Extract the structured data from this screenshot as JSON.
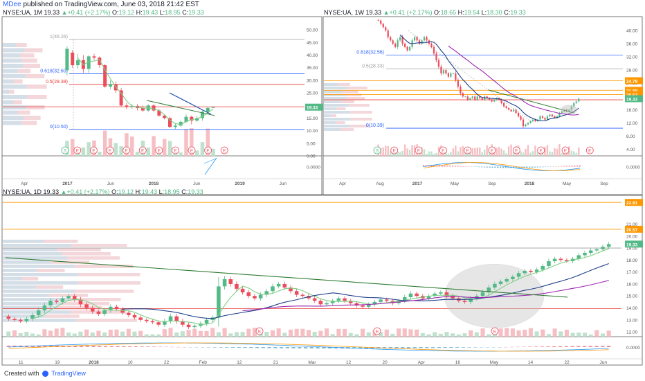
{
  "publish_line": {
    "author": "MDee",
    "rest": " published on TradingView.com, June 03, 2018 21:42 EST"
  },
  "footer": {
    "created_with": "Created with",
    "brand": "TradingView"
  },
  "colors": {
    "up": "#53b987",
    "down": "#eb4d5c",
    "sma_fast": "#1e3f8a",
    "sma_slow": "#9c27b0",
    "ema": "#7ccf82",
    "fib": "#2962ff",
    "level": "#e53935",
    "orange": "#ff9800",
    "trend": "#2e7d32",
    "blue_line": "#1f4fa6"
  },
  "chart_data": [
    {
      "type": "candlestick",
      "panel": "monthly",
      "header": {
        "symbol": "NYSE:UA, 1M",
        "price": "19.33",
        "change": "+0.41 (+2.17%)",
        "o": "19.12",
        "h": "19.43",
        "l": "18.95",
        "c": "19.33"
      },
      "ylim": [
        0,
        55
      ],
      "y_ticks": [
        "50.00",
        "45.00",
        "40.00",
        "35.00",
        "30.00",
        "25.00",
        "20.00",
        "15.00",
        "10.00",
        "5.00",
        "0.00"
      ],
      "indicator_tick": "0.0000",
      "x_ticks": [
        "Apr",
        "2017",
        "Jun",
        "2018",
        "Jun",
        "2019",
        "Jun"
      ],
      "last_price_label": "19.33",
      "fib_levels": [
        {
          "label": "1(46.26)",
          "value": 46.26
        },
        {
          "label": "0.618(32.60)",
          "value": 32.6
        },
        {
          "label": "0.5(28.38)",
          "value": 28.38
        },
        {
          "label": "0(10.50)",
          "value": 10.5
        }
      ],
      "candles": [
        {
          "t": "2016-03",
          "o": 34.0,
          "h": 43.5,
          "l": 32.0,
          "c": 42.5
        },
        {
          "t": "2016-04",
          "o": 41.0,
          "h": 42.0,
          "l": 35.0,
          "c": 36.0
        },
        {
          "t": "2016-05",
          "o": 36.0,
          "h": 40.5,
          "l": 34.5,
          "c": 38.0
        },
        {
          "t": "2016-06",
          "o": 38.0,
          "h": 40.0,
          "l": 33.0,
          "c": 34.5
        },
        {
          "t": "2016-07",
          "o": 34.5,
          "h": 40.0,
          "l": 33.0,
          "c": 39.5
        },
        {
          "t": "2016-08",
          "o": 39.5,
          "h": 40.5,
          "l": 38.0,
          "c": 39.0
        },
        {
          "t": "2016-09",
          "o": 39.0,
          "h": 39.5,
          "l": 35.0,
          "c": 36.0
        },
        {
          "t": "2016-10",
          "o": 36.0,
          "h": 36.5,
          "l": 27.0,
          "c": 27.5
        },
        {
          "t": "2016-11",
          "o": 27.5,
          "h": 30.0,
          "l": 26.5,
          "c": 28.5
        },
        {
          "t": "2016-12",
          "o": 28.5,
          "h": 29.5,
          "l": 25.0,
          "c": 26.0
        },
        {
          "t": "2017-01",
          "o": 26.0,
          "h": 27.0,
          "l": 19.5,
          "c": 20.0
        },
        {
          "t": "2017-02",
          "o": 20.0,
          "h": 21.0,
          "l": 18.5,
          "c": 19.5
        },
        {
          "t": "2017-03",
          "o": 19.5,
          "h": 20.5,
          "l": 18.5,
          "c": 19.8
        },
        {
          "t": "2017-04",
          "o": 19.8,
          "h": 20.5,
          "l": 18.0,
          "c": 19.0
        },
        {
          "t": "2017-05",
          "o": 19.0,
          "h": 20.0,
          "l": 17.5,
          "c": 18.0
        },
        {
          "t": "2017-06",
          "o": 18.0,
          "h": 20.5,
          "l": 17.5,
          "c": 20.0
        },
        {
          "t": "2017-07",
          "o": 20.0,
          "h": 20.5,
          "l": 17.5,
          "c": 18.0
        },
        {
          "t": "2017-08",
          "o": 18.0,
          "h": 18.5,
          "l": 15.5,
          "c": 16.0
        },
        {
          "t": "2017-09",
          "o": 16.0,
          "h": 16.5,
          "l": 14.5,
          "c": 15.0
        },
        {
          "t": "2017-10",
          "o": 15.0,
          "h": 15.5,
          "l": 11.0,
          "c": 11.5
        },
        {
          "t": "2017-11",
          "o": 11.5,
          "h": 13.0,
          "l": 10.5,
          "c": 12.0
        },
        {
          "t": "2017-12",
          "o": 12.0,
          "h": 14.0,
          "l": 11.5,
          "c": 13.5
        },
        {
          "t": "2018-01",
          "o": 13.5,
          "h": 16.5,
          "l": 13.0,
          "c": 15.5
        },
        {
          "t": "2018-02",
          "o": 15.5,
          "h": 16.0,
          "l": 12.5,
          "c": 14.0
        },
        {
          "t": "2018-03",
          "o": 14.0,
          "h": 16.0,
          "l": 13.5,
          "c": 15.0
        },
        {
          "t": "2018-04",
          "o": 15.0,
          "h": 18.0,
          "l": 14.0,
          "c": 17.5
        },
        {
          "t": "2018-05",
          "o": 17.5,
          "h": 19.5,
          "l": 16.5,
          "c": 19.0
        },
        {
          "t": "2018-06",
          "o": 19.12,
          "h": 19.43,
          "l": 18.95,
          "c": 19.33
        }
      ],
      "events_s": 1,
      "events_e": 10
    },
    {
      "type": "candlestick",
      "panel": "weekly",
      "header": {
        "symbol": "NYSE:UA, 1W",
        "price": "19.33",
        "change": "+0.41 (+2.17%)",
        "o": "18.65",
        "h": "19.54",
        "l": "18.30",
        "c": "19.33"
      },
      "ylim": [
        2,
        44
      ],
      "y_ticks": [
        "40.00",
        "36.00",
        "32.00",
        "28.00",
        "24.00",
        "20.00",
        "16.00",
        "12.00",
        "8.00",
        "4.00"
      ],
      "indicator_tick": "0.0000",
      "x_ticks": [
        "Apr",
        "Aug",
        "2017",
        "May",
        "Sep",
        "2018",
        "May",
        "Sep"
      ],
      "price_labels": [
        {
          "label": "24.78",
          "value": 24.78,
          "color": "#ff9800"
        },
        {
          "label": "21.88",
          "value": 21.88,
          "color": "#ff9800"
        },
        {
          "label": "20.57",
          "value": 20.57,
          "color": "#ff9800"
        },
        {
          "label": "19.33",
          "value": 19.33,
          "color": "#53b987"
        }
      ],
      "fib_levels": [
        {
          "label": "0.618(32.56)",
          "value": 32.56
        },
        {
          "label": "0.5(28.33)",
          "value": 28.33
        },
        {
          "label": "0(10.39)",
          "value": 10.39
        }
      ],
      "path_closes": [
        43,
        42,
        41,
        40,
        38,
        37,
        36,
        35,
        37,
        38,
        36,
        35,
        34,
        35,
        37,
        38,
        37,
        36,
        37,
        38,
        37,
        36,
        35,
        33,
        31,
        29,
        27,
        28,
        27,
        26,
        27,
        27,
        25,
        23,
        21,
        20,
        20,
        19,
        19.5,
        20,
        19,
        20,
        19.5,
        19,
        20,
        19.5,
        19,
        18.5,
        19,
        19.5,
        19,
        18,
        17,
        16.5,
        16,
        15.5,
        16,
        15,
        14,
        13,
        11,
        11.5,
        12,
        12.5,
        13,
        12.5,
        13,
        14,
        13.5,
        13,
        14,
        14.5,
        14,
        13.5,
        14,
        15,
        15.5,
        16,
        15.5,
        16,
        17,
        18,
        18.5,
        19.33
      ]
    },
    {
      "type": "candlestick",
      "panel": "daily",
      "header": {
        "symbol": "NYSE:UA, 1D",
        "price": "19.33",
        "change": "+0.41 (+2.17%)",
        "o": "19.12",
        "h": "19.43",
        "l": "18.95",
        "c": "19.33"
      },
      "ylim": [
        11.6,
        23.4
      ],
      "y_ticks": [
        "21.00",
        "20.00",
        "19.00",
        "18.00",
        "17.00",
        "16.00",
        "15.00",
        "14.00",
        "13.00",
        "12.00"
      ],
      "indicator_tick": "0.0000",
      "x_ticks": [
        "11",
        "19",
        "2018",
        "10",
        "22",
        "Feb",
        "12",
        "21",
        "Mar",
        "12",
        "20",
        "Apr",
        "16",
        "May",
        "14",
        "22",
        "Jun"
      ],
      "price_labels": [
        {
          "label": "22.81",
          "value": 22.81,
          "color": "#ff9800"
        },
        {
          "label": "20.57",
          "value": 20.57,
          "color": "#ff9800"
        },
        {
          "label": "19.33",
          "value": 19.33,
          "color": "#53b987"
        }
      ],
      "horizontal_levels": [
        {
          "value": 22.81,
          "color": "#ff9800"
        },
        {
          "value": 20.57,
          "color": "#ff9800"
        },
        {
          "value": 19.0,
          "color": "#9e9e9e"
        },
        {
          "value": 13.95,
          "color": "#e53935"
        }
      ],
      "path_closes": [
        13.1,
        13.0,
        12.9,
        13.1,
        13.4,
        13.8,
        14.2,
        14.6,
        14.5,
        14.8,
        15.0,
        14.7,
        14.3,
        14.0,
        13.7,
        13.5,
        13.8,
        14.1,
        13.9,
        13.6,
        13.4,
        13.2,
        13.0,
        12.9,
        12.8,
        12.6,
        12.9,
        13.3,
        12.9,
        12.6,
        12.4,
        12.5,
        12.7,
        13.0,
        13.2,
        15.8,
        16.4,
        16.0,
        15.6,
        15.3,
        15.0,
        14.8,
        15.1,
        15.4,
        15.8,
        16.0,
        15.7,
        15.4,
        15.1,
        15.0,
        14.8,
        14.6,
        14.3,
        14.4,
        14.6,
        14.8,
        14.6,
        14.4,
        14.2,
        14.1,
        14.3,
        14.5,
        14.7,
        14.6,
        14.4,
        14.6,
        14.9,
        15.2,
        15.0,
        14.8,
        15.0,
        15.2,
        15.3,
        15.0,
        14.8,
        14.6,
        14.5,
        14.8,
        15.0,
        15.3,
        15.7,
        16.0,
        16.2,
        16.4,
        16.6,
        16.9,
        17.1,
        17.0,
        17.2,
        17.5,
        17.9,
        18.1,
        18.0,
        17.9,
        18.1,
        18.4,
        18.6,
        18.8,
        18.9,
        19.1,
        19.33
      ],
      "events_s": 0,
      "events_e": 3
    }
  ]
}
